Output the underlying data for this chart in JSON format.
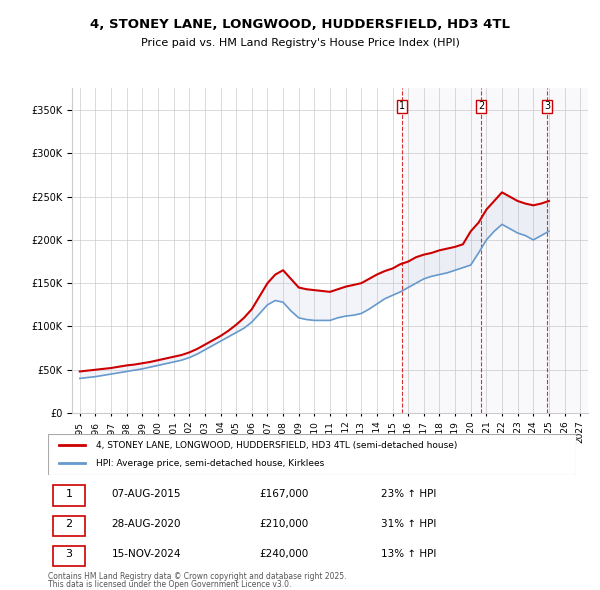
{
  "title_line1": "4, STONEY LANE, LONGWOOD, HUDDERSFIELD, HD3 4TL",
  "title_line2": "Price paid vs. HM Land Registry's House Price Index (HPI)",
  "legend_label_red": "4, STONEY LANE, LONGWOOD, HUDDERSFIELD, HD3 4TL (semi-detached house)",
  "legend_label_blue": "HPI: Average price, semi-detached house, Kirklees",
  "footer_line1": "Contains HM Land Registry data © Crown copyright and database right 2025.",
  "footer_line2": "This data is licensed under the Open Government Licence v3.0.",
  "transactions": [
    {
      "num": 1,
      "date": "07-AUG-2015",
      "price": "£167,000",
      "hpi": "23% ↑ HPI",
      "year": 2015.6
    },
    {
      "num": 2,
      "date": "28-AUG-2020",
      "price": "£210,000",
      "hpi": "31% ↑ HPI",
      "year": 2020.65
    },
    {
      "num": 3,
      "date": "15-NOV-2024",
      "price": "£240,000",
      "hpi": "13% ↑ HPI",
      "year": 2024.87
    }
  ],
  "red_color": "#cc0000",
  "blue_color": "#6699cc",
  "vline_color": "#cc0000",
  "hatch_color": "#ddddee",
  "ylim": [
    0,
    375000
  ],
  "yticks": [
    0,
    50000,
    100000,
    150000,
    200000,
    250000,
    300000,
    350000
  ],
  "xlim": [
    1994.5,
    2027.5
  ],
  "xticks": [
    1995,
    1996,
    1997,
    1998,
    1999,
    2000,
    2001,
    2002,
    2003,
    2004,
    2005,
    2006,
    2007,
    2008,
    2009,
    2010,
    2011,
    2012,
    2013,
    2014,
    2015,
    2016,
    2017,
    2018,
    2019,
    2020,
    2021,
    2022,
    2023,
    2024,
    2025,
    2026,
    2027
  ],
  "red_x": [
    1995.0,
    1995.5,
    1996.0,
    1996.5,
    1997.0,
    1997.5,
    1998.0,
    1998.5,
    1999.0,
    1999.5,
    2000.0,
    2000.5,
    2001.0,
    2001.5,
    2002.0,
    2002.5,
    2003.0,
    2003.5,
    2004.0,
    2004.5,
    2005.0,
    2005.5,
    2006.0,
    2006.5,
    2007.0,
    2007.5,
    2008.0,
    2008.5,
    2009.0,
    2009.5,
    2010.0,
    2010.5,
    2011.0,
    2011.5,
    2012.0,
    2012.5,
    2013.0,
    2013.5,
    2014.0,
    2014.5,
    2015.0,
    2015.5,
    2016.0,
    2016.5,
    2017.0,
    2017.5,
    2018.0,
    2018.5,
    2019.0,
    2019.5,
    2020.0,
    2020.5,
    2021.0,
    2021.5,
    2022.0,
    2022.5,
    2023.0,
    2023.5,
    2024.0,
    2024.5,
    2025.0
  ],
  "red_y": [
    48000,
    49000,
    50000,
    51000,
    52000,
    53500,
    55000,
    56000,
    57500,
    59000,
    61000,
    63000,
    65000,
    67000,
    70000,
    74000,
    79000,
    84000,
    89000,
    95000,
    102000,
    110000,
    120000,
    135000,
    150000,
    160000,
    165000,
    155000,
    145000,
    143000,
    142000,
    141000,
    140000,
    143000,
    146000,
    148000,
    150000,
    155000,
    160000,
    164000,
    167000,
    172000,
    175000,
    180000,
    183000,
    185000,
    188000,
    190000,
    192000,
    195000,
    210000,
    220000,
    235000,
    245000,
    255000,
    250000,
    245000,
    242000,
    240000,
    242000,
    245000
  ],
  "blue_x": [
    1995.0,
    1995.5,
    1996.0,
    1996.5,
    1997.0,
    1997.5,
    1998.0,
    1998.5,
    1999.0,
    1999.5,
    2000.0,
    2000.5,
    2001.0,
    2001.5,
    2002.0,
    2002.5,
    2003.0,
    2003.5,
    2004.0,
    2004.5,
    2005.0,
    2005.5,
    2006.0,
    2006.5,
    2007.0,
    2007.5,
    2008.0,
    2008.5,
    2009.0,
    2009.5,
    2010.0,
    2010.5,
    2011.0,
    2011.5,
    2012.0,
    2012.5,
    2013.0,
    2013.5,
    2014.0,
    2014.5,
    2015.0,
    2015.5,
    2016.0,
    2016.5,
    2017.0,
    2017.5,
    2018.0,
    2018.5,
    2019.0,
    2019.5,
    2020.0,
    2020.5,
    2021.0,
    2021.5,
    2022.0,
    2022.5,
    2023.0,
    2023.5,
    2024.0,
    2024.5,
    2025.0
  ],
  "blue_y": [
    40000,
    41000,
    42000,
    43500,
    45000,
    46500,
    48000,
    49500,
    51000,
    53000,
    55000,
    57000,
    59000,
    61000,
    64000,
    68000,
    73000,
    78000,
    83000,
    88000,
    93000,
    98000,
    105000,
    115000,
    125000,
    130000,
    128000,
    118000,
    110000,
    108000,
    107000,
    107000,
    107000,
    110000,
    112000,
    113000,
    115000,
    120000,
    126000,
    132000,
    136000,
    140000,
    145000,
    150000,
    155000,
    158000,
    160000,
    162000,
    165000,
    168000,
    171000,
    185000,
    200000,
    210000,
    218000,
    213000,
    208000,
    205000,
    200000,
    205000,
    210000
  ]
}
